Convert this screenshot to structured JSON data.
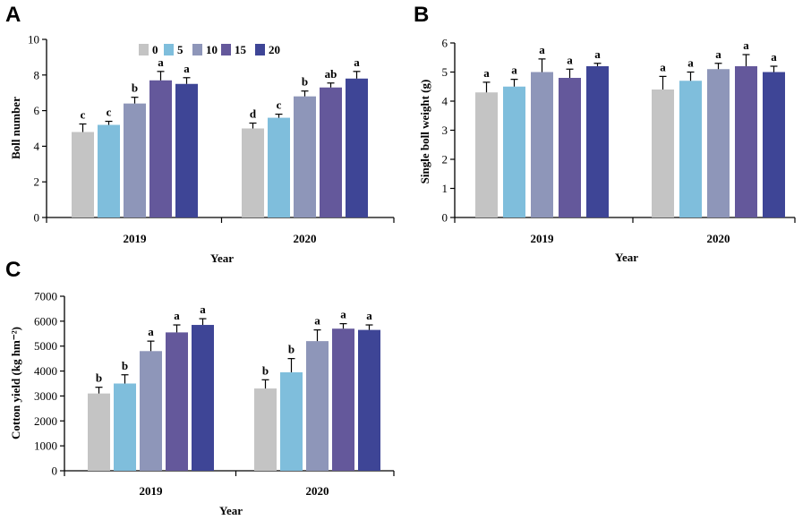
{
  "figure": {
    "legend": {
      "labels": [
        "0",
        "5",
        "10",
        "15",
        "20"
      ],
      "colors": [
        "#c4c4c4",
        "#7fbedc",
        "#8e96b9",
        "#64589b",
        "#3e4596"
      ]
    }
  },
  "chart_data": [
    {
      "panel": "A",
      "type": "bar",
      "categories": [
        "2019",
        "2020"
      ],
      "xlabel": "Year",
      "ylabel": "Boll number",
      "ylim": [
        0,
        10
      ],
      "yticks": [
        "0",
        "2",
        "4",
        "6",
        "8",
        "10"
      ],
      "series": [
        {
          "name": "0",
          "values": [
            4.8,
            5.0
          ],
          "errors": [
            0.45,
            0.3
          ],
          "letters": [
            "c",
            "d"
          ]
        },
        {
          "name": "5",
          "values": [
            5.2,
            5.6
          ],
          "errors": [
            0.2,
            0.2
          ],
          "letters": [
            "c",
            "c"
          ]
        },
        {
          "name": "10",
          "values": [
            6.4,
            6.8
          ],
          "errors": [
            0.35,
            0.3
          ],
          "letters": [
            "b",
            "b"
          ]
        },
        {
          "name": "15",
          "values": [
            7.7,
            7.3
          ],
          "errors": [
            0.5,
            0.25
          ],
          "letters": [
            "a",
            "ab"
          ]
        },
        {
          "name": "20",
          "values": [
            7.5,
            7.8
          ],
          "errors": [
            0.35,
            0.4
          ],
          "letters": [
            "a",
            "a"
          ]
        }
      ]
    },
    {
      "panel": "B",
      "type": "bar",
      "categories": [
        "2019",
        "2020"
      ],
      "xlabel": "Year",
      "ylabel": "Single boll weight (g)",
      "ylim": [
        0,
        6
      ],
      "yticks": [
        "0",
        "1",
        "2",
        "3",
        "4",
        "5",
        "6"
      ],
      "series": [
        {
          "name": "0",
          "values": [
            4.3,
            4.4
          ],
          "errors": [
            0.35,
            0.45
          ],
          "letters": [
            "a",
            "a"
          ]
        },
        {
          "name": "5",
          "values": [
            4.5,
            4.7
          ],
          "errors": [
            0.25,
            0.3
          ],
          "letters": [
            "a",
            "a"
          ]
        },
        {
          "name": "10",
          "values": [
            5.0,
            5.1
          ],
          "errors": [
            0.45,
            0.2
          ],
          "letters": [
            "a",
            "a"
          ]
        },
        {
          "name": "15",
          "values": [
            4.8,
            5.2
          ],
          "errors": [
            0.3,
            0.4
          ],
          "letters": [
            "a",
            "a"
          ]
        },
        {
          "name": "20",
          "values": [
            5.2,
            5.0
          ],
          "errors": [
            0.1,
            0.2
          ],
          "letters": [
            "a",
            "a"
          ]
        }
      ]
    },
    {
      "panel": "C",
      "type": "bar",
      "categories": [
        "2019",
        "2020"
      ],
      "xlabel": "Year",
      "ylabel": "Cotton yield (kg hm⁻²)",
      "ylim": [
        0,
        7000
      ],
      "yticks": [
        "0",
        "1000",
        "2000",
        "3000",
        "4000",
        "5000",
        "6000",
        "7000"
      ],
      "series": [
        {
          "name": "0",
          "values": [
            3100,
            3300
          ],
          "errors": [
            250,
            350
          ],
          "letters": [
            "b",
            "b"
          ]
        },
        {
          "name": "5",
          "values": [
            3500,
            3950
          ],
          "errors": [
            350,
            550
          ],
          "letters": [
            "b",
            "b"
          ]
        },
        {
          "name": "10",
          "values": [
            4800,
            5200
          ],
          "errors": [
            400,
            450
          ],
          "letters": [
            "a",
            "a"
          ]
        },
        {
          "name": "15",
          "values": [
            5550,
            5700
          ],
          "errors": [
            300,
            200
          ],
          "letters": [
            "a",
            "a"
          ]
        },
        {
          "name": "20",
          "values": [
            5850,
            5650
          ],
          "errors": [
            250,
            200
          ],
          "letters": [
            "a",
            "a"
          ]
        }
      ]
    }
  ]
}
